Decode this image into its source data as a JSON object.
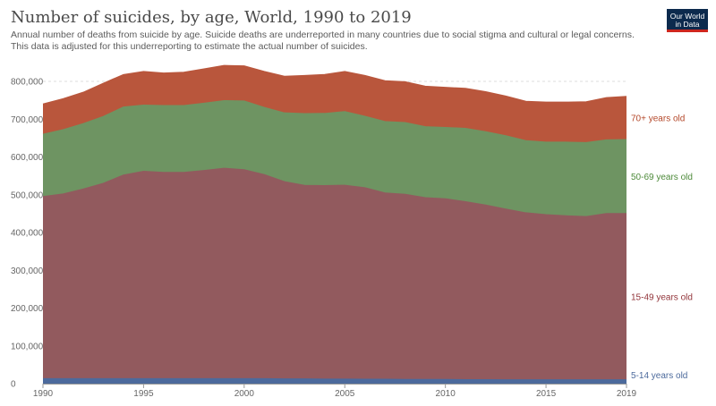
{
  "header": {
    "title": "Number of suicides, by age, World, 1990 to 2019",
    "subtitle": "Annual number of deaths from suicide by age. Suicide deaths are underreported in many countries due to social stigma and cultural or legal concerns. This data is adjusted for this underreporting to estimate the actual number of suicides.",
    "logo_line1": "Our World",
    "logo_line2": "in Data"
  },
  "chart_data": {
    "type": "area",
    "stacked": true,
    "title": "Number of suicides, by age, World, 1990 to 2019",
    "x": [
      1990,
      1991,
      1992,
      1993,
      1994,
      1995,
      1996,
      1997,
      1998,
      1999,
      2000,
      2001,
      2002,
      2003,
      2004,
      2005,
      2006,
      2007,
      2008,
      2009,
      2010,
      2011,
      2012,
      2013,
      2014,
      2015,
      2016,
      2017,
      2018,
      2019
    ],
    "xlim": [
      1990,
      2019
    ],
    "x_ticks": [
      "1990",
      "1995",
      "2000",
      "2005",
      "2010",
      "2015",
      "2019"
    ],
    "ylim": [
      0,
      800000
    ],
    "y_ticks": [
      "0",
      "100,000",
      "200,000",
      "300,000",
      "400,000",
      "500,000",
      "600,000",
      "700,000",
      "800,000"
    ],
    "grid": "horizontal-dashed",
    "legend": "right",
    "series": [
      {
        "name": "5-14 years old",
        "color": "#4c6a9c",
        "label_color": "#4c6a9c",
        "values": [
          13000,
          13000,
          13000,
          13000,
          13000,
          13000,
          13000,
          13000,
          13000,
          13000,
          13000,
          13000,
          12500,
          12500,
          12000,
          12000,
          11500,
          11500,
          11000,
          11000,
          11000,
          10500,
          10500,
          10000,
          10000,
          10000,
          10000,
          10000,
          10000,
          10000
        ]
      },
      {
        "name": "15-49 years old",
        "color": "#925a5e",
        "label_color": "#92343a",
        "values": [
          482000,
          489000,
          502000,
          517000,
          539000,
          549000,
          546000,
          546000,
          551000,
          557000,
          553000,
          540000,
          522000,
          512000,
          512000,
          513000,
          507000,
          493000,
          490000,
          481000,
          478000,
          471000,
          462000,
          452000,
          442000,
          437000,
          434000,
          432000,
          440000,
          440000
        ]
      },
      {
        "name": "50-69 years old",
        "color": "#6e9462",
        "label_color": "#4d8a3a",
        "values": [
          165000,
          170000,
          173000,
          177000,
          180000,
          175000,
          177000,
          177000,
          178000,
          179000,
          182000,
          178000,
          182000,
          190000,
          191000,
          195000,
          189000,
          189000,
          190000,
          188000,
          189000,
          194000,
          194000,
          194000,
          191000,
          192000,
          195000,
          196000,
          195000,
          196000
        ]
      },
      {
        "name": "70+ years old",
        "color": "#b9563c",
        "label_color": "#b4482a",
        "values": [
          80000,
          82000,
          83000,
          88000,
          86000,
          89000,
          86000,
          88000,
          91000,
          93000,
          93000,
          95000,
          97000,
          101000,
          103000,
          106000,
          108000,
          108000,
          108000,
          107000,
          106000,
          106000,
          106000,
          105000,
          104000,
          106000,
          106000,
          108000,
          112000,
          114000
        ]
      }
    ]
  }
}
